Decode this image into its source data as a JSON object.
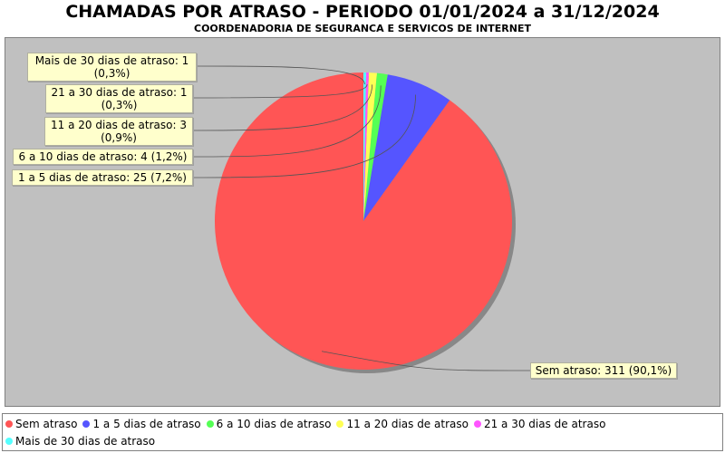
{
  "chart_data": {
    "type": "pie",
    "title": "CHAMADAS POR ATRASO - PERIODO 01/01/2024 a 31/12/2024",
    "subtitle": "COORDENADORIA DE SEGURANCA E SERVICOS DE INTERNET",
    "legend_placement": "bottom",
    "slices": [
      {
        "name": "Sem atraso",
        "value": 311,
        "percent": "90,1%",
        "label": "Sem atraso: 311 (90,1%)",
        "color": "#ff5555"
      },
      {
        "name": "1 a 5 dias de atraso",
        "value": 25,
        "percent": "7,2%",
        "label": "1 a 5 dias de atraso: 25 (7,2%)",
        "color": "#5555ff"
      },
      {
        "name": "6 a 10 dias de atraso",
        "value": 4,
        "percent": "1,2%",
        "label": "6 a 10 dias de atraso: 4 (1,2%)",
        "color": "#55ff55"
      },
      {
        "name": "11 a 20 dias de atraso",
        "value": 3,
        "percent": "0,9%",
        "label": "11 a 20 dias de atraso: 3\n(0,9%)",
        "color": "#ffff55"
      },
      {
        "name": "21 a 30 dias de atraso",
        "value": 1,
        "percent": "0,3%",
        "label": "21 a 30 dias de atraso: 1\n(0,3%)",
        "color": "#ff55ff"
      },
      {
        "name": "Mais de 30 dias de atraso",
        "value": 1,
        "percent": "0,3%",
        "label": "Mais de 30 dias de atraso: 1\n(0,3%)",
        "color": "#55ffff"
      }
    ]
  }
}
